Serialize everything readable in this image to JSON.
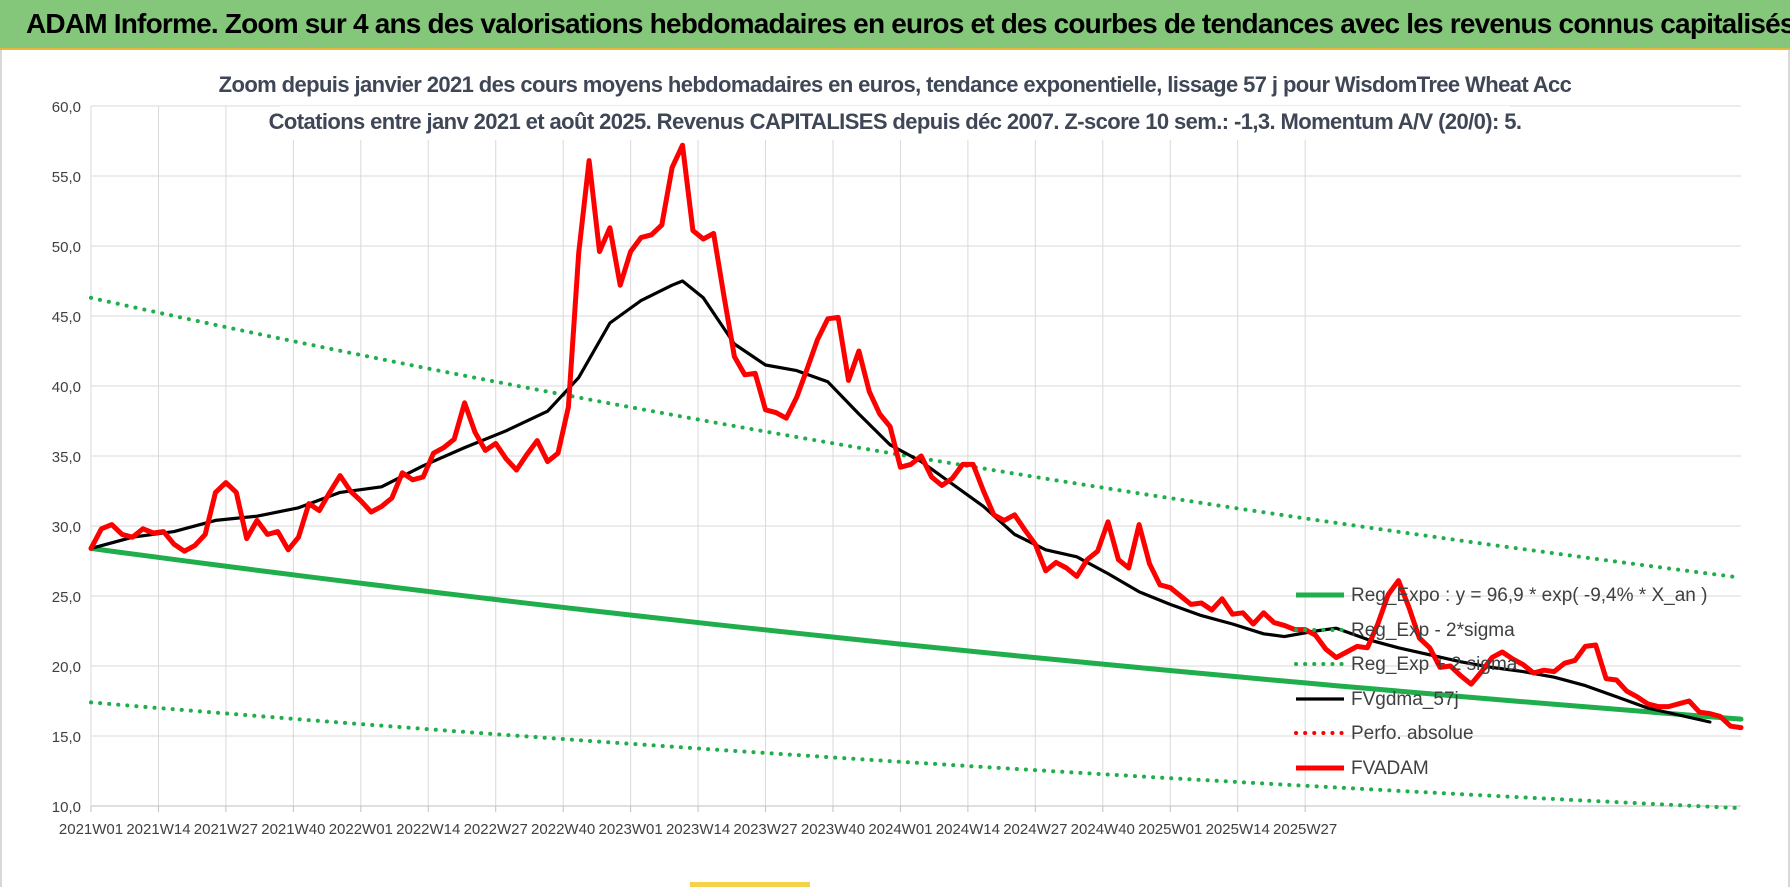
{
  "header": {
    "title": "ADAM Informe. Zoom sur 4 ans des valorisations hebdomadaires en euros et des courbes de tendances avec les revenus connus capitalisés"
  },
  "chart_data": {
    "type": "line",
    "title": "Zoom depuis janvier 2021 des cours moyens hebdomadaires en euros, tendance exponentielle, lissage 57 j pour WisdomTree Wheat Acc",
    "subtitle": "Cotations entre janv 2021 et août 2025. Revenus CAPITALISES depuis déc 2007. Z-score 10 sem.: -1,3. Momentum A/V (20/0): 5.",
    "xlabel": "",
    "ylabel": "",
    "ylim": [
      10,
      60
    ],
    "yticks": [
      "10,0",
      "15,0",
      "20,0",
      "25,0",
      "30,0",
      "35,0",
      "40,0",
      "45,0",
      "50,0",
      "55,0",
      "60,0"
    ],
    "xticks": [
      "2021W01",
      "2021W14",
      "2021W27",
      "2021W40",
      "2022W01",
      "2022W14",
      "2022W27",
      "2022W40",
      "2023W01",
      "2023W14",
      "2023W27",
      "2023W40",
      "2024W01",
      "2024W14",
      "2024W27",
      "2024W40",
      "2025W01",
      "2025W14",
      "2025W27"
    ],
    "x_range_weeks": [
      0,
      246
    ],
    "grid": true,
    "legend_position": "right",
    "series": [
      {
        "name": "Reg_Expo : y = 96,9 * exp( -9,4% *  X_an )",
        "color": "#1fae4b",
        "style": "solid",
        "points": [
          [
            0,
            28.4
          ],
          [
            246,
            18.4
          ]
        ]
      },
      {
        "name": "Reg_Exp - 2*sigma",
        "color": "#1fae4b",
        "style": "dotted",
        "points": [
          [
            0,
            17.4
          ],
          [
            246,
            11.2
          ]
        ]
      },
      {
        "name": "Reg_Exp + 2 sigma",
        "color": "#1fae4b",
        "style": "dotted",
        "points": [
          [
            0,
            46.3
          ],
          [
            246,
            29.9
          ]
        ]
      },
      {
        "name": "FVgdma_57j",
        "color": "#000000",
        "style": "solid",
        "points": [
          [
            0,
            28.4
          ],
          [
            8,
            29.2
          ],
          [
            16,
            29.6
          ],
          [
            24,
            30.4
          ],
          [
            32,
            30.7
          ],
          [
            40,
            31.3
          ],
          [
            48,
            32.4
          ],
          [
            56,
            32.8
          ],
          [
            64,
            34.3
          ],
          [
            72,
            35.6
          ],
          [
            80,
            36.8
          ],
          [
            88,
            38.2
          ],
          [
            94,
            40.6
          ],
          [
            100,
            44.5
          ],
          [
            106,
            46.1
          ],
          [
            112,
            47.2
          ],
          [
            114,
            47.5
          ],
          [
            118,
            46.3
          ],
          [
            124,
            43.0
          ],
          [
            130,
            41.5
          ],
          [
            136,
            41.1
          ],
          [
            142,
            40.3
          ],
          [
            148,
            38.0
          ],
          [
            154,
            35.8
          ],
          [
            160,
            34.6
          ],
          [
            166,
            33.0
          ],
          [
            172,
            31.4
          ],
          [
            178,
            29.4
          ],
          [
            184,
            28.3
          ],
          [
            190,
            27.8
          ],
          [
            196,
            26.6
          ],
          [
            202,
            25.3
          ],
          [
            208,
            24.4
          ],
          [
            214,
            23.6
          ],
          [
            220,
            23.0
          ],
          [
            226,
            22.3
          ],
          [
            230,
            22.1
          ],
          [
            236,
            22.5
          ],
          [
            240,
            22.7
          ],
          [
            246,
            21.9
          ],
          [
            252,
            21.3
          ],
          [
            258,
            20.8
          ],
          [
            264,
            20.3
          ],
          [
            270,
            19.9
          ],
          [
            276,
            19.6
          ],
          [
            282,
            19.2
          ],
          [
            288,
            18.6
          ],
          [
            294,
            17.8
          ],
          [
            300,
            17.0
          ],
          [
            306,
            16.5
          ],
          [
            312,
            16.0
          ]
        ]
      },
      {
        "name": "Perfo. absolue",
        "color": "#ff0000",
        "style": "dotted",
        "points": []
      },
      {
        "name": "FVADAM",
        "color": "#ff0000",
        "style": "solid",
        "points": [
          [
            0,
            28.4
          ],
          [
            2,
            29.8
          ],
          [
            4,
            30.1
          ],
          [
            6,
            29.4
          ],
          [
            8,
            29.2
          ],
          [
            10,
            29.8
          ],
          [
            12,
            29.5
          ],
          [
            14,
            29.6
          ],
          [
            16,
            28.7
          ],
          [
            18,
            28.2
          ],
          [
            20,
            28.6
          ],
          [
            22,
            29.4
          ],
          [
            24,
            32.4
          ],
          [
            26,
            33.1
          ],
          [
            28,
            32.4
          ],
          [
            30,
            29.1
          ],
          [
            32,
            30.4
          ],
          [
            34,
            29.4
          ],
          [
            36,
            29.6
          ],
          [
            38,
            28.3
          ],
          [
            40,
            29.2
          ],
          [
            42,
            31.6
          ],
          [
            44,
            31.1
          ],
          [
            46,
            32.4
          ],
          [
            48,
            33.6
          ],
          [
            50,
            32.5
          ],
          [
            52,
            31.8
          ],
          [
            54,
            31.0
          ],
          [
            56,
            31.4
          ],
          [
            58,
            32.0
          ],
          [
            60,
            33.8
          ],
          [
            62,
            33.3
          ],
          [
            64,
            33.5
          ],
          [
            66,
            35.2
          ],
          [
            68,
            35.6
          ],
          [
            70,
            36.2
          ],
          [
            72,
            38.8
          ],
          [
            74,
            36.7
          ],
          [
            76,
            35.4
          ],
          [
            78,
            35.9
          ],
          [
            80,
            34.8
          ],
          [
            82,
            34.0
          ],
          [
            84,
            35.1
          ],
          [
            86,
            36.1
          ],
          [
            88,
            34.6
          ],
          [
            90,
            35.2
          ],
          [
            92,
            38.5
          ],
          [
            94,
            49.5
          ],
          [
            96,
            56.1
          ],
          [
            98,
            49.6
          ],
          [
            100,
            51.3
          ],
          [
            102,
            47.2
          ],
          [
            104,
            49.6
          ],
          [
            106,
            50.6
          ],
          [
            108,
            50.8
          ],
          [
            110,
            51.5
          ],
          [
            112,
            55.6
          ],
          [
            114,
            57.2
          ],
          [
            116,
            51.1
          ],
          [
            118,
            50.5
          ],
          [
            120,
            50.9
          ],
          [
            122,
            46.4
          ],
          [
            124,
            42.1
          ],
          [
            126,
            40.8
          ],
          [
            128,
            40.9
          ],
          [
            130,
            38.3
          ],
          [
            132,
            38.1
          ],
          [
            134,
            37.7
          ],
          [
            136,
            39.2
          ],
          [
            138,
            41.2
          ],
          [
            140,
            43.3
          ],
          [
            142,
            44.8
          ],
          [
            144,
            44.9
          ],
          [
            146,
            40.4
          ],
          [
            148,
            42.5
          ],
          [
            150,
            39.6
          ],
          [
            152,
            38.0
          ],
          [
            154,
            37.1
          ],
          [
            156,
            34.2
          ],
          [
            158,
            34.4
          ],
          [
            160,
            35.0
          ],
          [
            162,
            33.5
          ],
          [
            164,
            32.9
          ],
          [
            166,
            33.4
          ],
          [
            168,
            34.4
          ],
          [
            170,
            34.4
          ],
          [
            172,
            32.5
          ],
          [
            174,
            30.8
          ],
          [
            176,
            30.4
          ],
          [
            178,
            30.8
          ],
          [
            180,
            29.7
          ],
          [
            182,
            28.7
          ],
          [
            184,
            26.8
          ],
          [
            186,
            27.4
          ],
          [
            188,
            27.0
          ],
          [
            190,
            26.4
          ],
          [
            192,
            27.6
          ],
          [
            194,
            28.2
          ],
          [
            196,
            30.3
          ],
          [
            198,
            27.6
          ],
          [
            200,
            27.0
          ],
          [
            202,
            30.1
          ],
          [
            204,
            27.3
          ],
          [
            206,
            25.8
          ],
          [
            208,
            25.6
          ],
          [
            210,
            25.0
          ],
          [
            212,
            24.4
          ],
          [
            214,
            24.5
          ],
          [
            216,
            24.0
          ],
          [
            218,
            24.8
          ],
          [
            220,
            23.7
          ],
          [
            222,
            23.8
          ],
          [
            224,
            23.0
          ],
          [
            226,
            23.8
          ],
          [
            228,
            23.1
          ],
          [
            230,
            22.9
          ],
          [
            232,
            22.6
          ],
          [
            234,
            22.6
          ],
          [
            236,
            22.2
          ],
          [
            238,
            21.2
          ],
          [
            240,
            20.6
          ],
          [
            242,
            21.0
          ],
          [
            244,
            21.4
          ],
          [
            246,
            21.3
          ],
          [
            248,
            23.0
          ],
          [
            250,
            25.1
          ],
          [
            252,
            26.1
          ],
          [
            254,
            24.2
          ],
          [
            256,
            22.0
          ],
          [
            258,
            21.3
          ],
          [
            260,
            19.9
          ],
          [
            262,
            20.0
          ],
          [
            264,
            19.3
          ],
          [
            266,
            18.7
          ],
          [
            268,
            19.6
          ],
          [
            270,
            20.6
          ],
          [
            272,
            21.0
          ],
          [
            274,
            20.5
          ],
          [
            276,
            20.1
          ],
          [
            278,
            19.5
          ],
          [
            280,
            19.7
          ],
          [
            282,
            19.6
          ],
          [
            284,
            20.2
          ],
          [
            286,
            20.4
          ],
          [
            288,
            21.4
          ],
          [
            290,
            21.5
          ],
          [
            292,
            19.1
          ],
          [
            294,
            19.0
          ],
          [
            296,
            18.2
          ],
          [
            298,
            17.8
          ],
          [
            300,
            17.3
          ],
          [
            302,
            17.1
          ],
          [
            304,
            17.1
          ],
          [
            306,
            17.3
          ],
          [
            308,
            17.5
          ],
          [
            310,
            16.7
          ],
          [
            312,
            16.6
          ],
          [
            314,
            16.4
          ],
          [
            316,
            15.7
          ],
          [
            318,
            15.6
          ]
        ]
      }
    ]
  }
}
